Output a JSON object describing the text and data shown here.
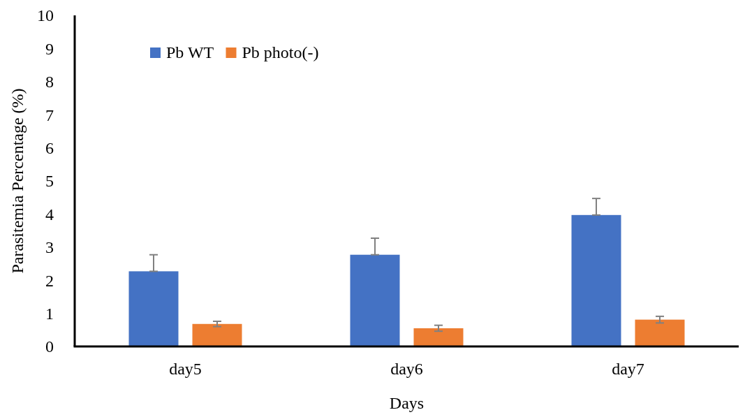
{
  "chart_data": {
    "type": "bar",
    "xlabel": "Days",
    "ylabel": "Parasitemia Percentage (%)",
    "categories": [
      "day5",
      "day6",
      "day7"
    ],
    "series": [
      {
        "name": "Pb WT",
        "color": "#4472c4",
        "values": [
          2.27,
          2.77,
          3.97
        ],
        "errors": [
          [
            2.27,
            2.77
          ],
          [
            2.77,
            3.27
          ],
          [
            3.97,
            4.47
          ]
        ]
      },
      {
        "name": "Pb photo(-)",
        "color": "#ed7d31",
        "values": [
          0.68,
          0.55,
          0.81
        ],
        "errors": [
          0.08,
          0.09,
          0.1
        ]
      }
    ],
    "ylim": [
      0,
      10
    ],
    "yticks": [
      0,
      1,
      2,
      3,
      4,
      5,
      6,
      7,
      8,
      9,
      10
    ],
    "grid": false,
    "legend": "top left"
  }
}
